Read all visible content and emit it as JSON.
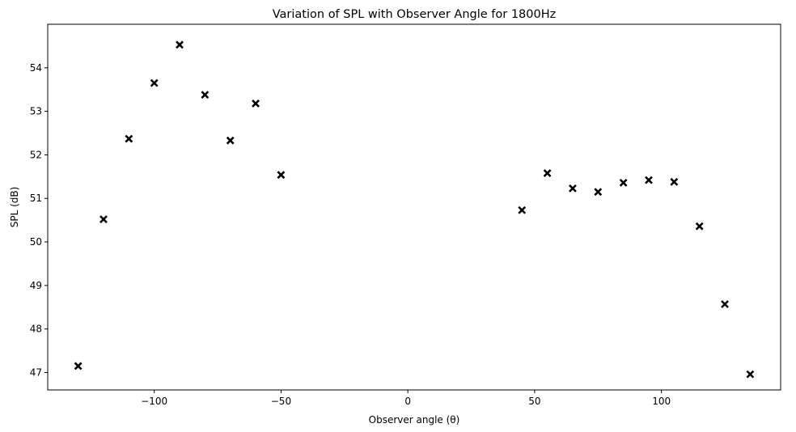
{
  "chart_data": {
    "type": "scatter",
    "title": "Variation of SPL with Observer Angle for 1800Hz",
    "xlabel": "Observer angle (θ)",
    "ylabel": "SPL (dB)",
    "xlim": [
      -142,
      147
    ],
    "ylim": [
      46.6,
      55.0
    ],
    "xticks": [
      -100,
      -50,
      0,
      50,
      100
    ],
    "xtick_labels": [
      "−100",
      "−50",
      "0",
      "50",
      "100"
    ],
    "yticks": [
      47,
      48,
      49,
      50,
      51,
      52,
      53,
      54
    ],
    "ytick_labels": [
      "47",
      "48",
      "49",
      "50",
      "51",
      "52",
      "53",
      "54"
    ],
    "grid": false,
    "marker": "x",
    "marker_color": "#000000",
    "points": [
      {
        "x": -130,
        "y": 47.15
      },
      {
        "x": -120,
        "y": 50.52
      },
      {
        "x": -110,
        "y": 52.37
      },
      {
        "x": -100,
        "y": 53.65
      },
      {
        "x": -90,
        "y": 54.53
      },
      {
        "x": -80,
        "y": 53.38
      },
      {
        "x": -70,
        "y": 52.33
      },
      {
        "x": -60,
        "y": 53.18
      },
      {
        "x": -50,
        "y": 51.54
      },
      {
        "x": 45,
        "y": 50.73
      },
      {
        "x": 55,
        "y": 51.58
      },
      {
        "x": 65,
        "y": 51.23
      },
      {
        "x": 75,
        "y": 51.15
      },
      {
        "x": 85,
        "y": 51.36
      },
      {
        "x": 95,
        "y": 51.42
      },
      {
        "x": 105,
        "y": 51.38
      },
      {
        "x": 115,
        "y": 50.36
      },
      {
        "x": 125,
        "y": 48.57
      },
      {
        "x": 135,
        "y": 46.96
      }
    ]
  }
}
